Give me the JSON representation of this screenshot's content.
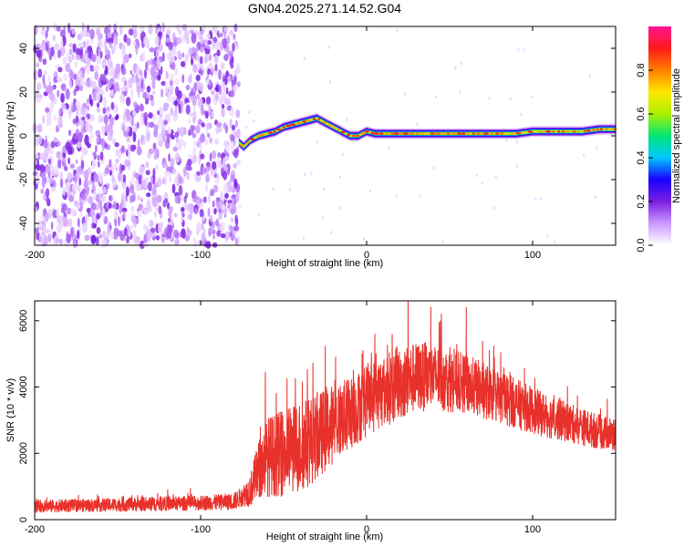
{
  "title": "GN04.2025.271.14.52.G04",
  "chart_data": [
    {
      "type": "heatmap",
      "name": "spectrogram",
      "xlabel": "Height of straight line (km)",
      "ylabel": "Frequency (Hz)",
      "xlim": [
        -200,
        150
      ],
      "ylim": [
        -50,
        50
      ],
      "xticks": [
        -200,
        -100,
        0,
        100
      ],
      "yticks": [
        -40,
        -20,
        0,
        20,
        40
      ],
      "noise_region_x": [
        -200,
        -77
      ],
      "ridge": {
        "x": [
          -77,
          -74,
          -70,
          -65,
          -60,
          -55,
          -50,
          -45,
          -40,
          -35,
          -30,
          -25,
          -20,
          -15,
          -10,
          -5,
          0,
          5,
          10,
          20,
          30,
          40,
          50,
          60,
          70,
          80,
          90,
          100,
          110,
          120,
          130,
          140,
          150
        ],
        "y": [
          -3,
          -5,
          -2,
          0,
          1,
          2,
          4,
          5,
          6,
          7,
          8,
          6,
          4,
          2,
          0,
          0,
          2,
          1,
          1,
          1,
          1,
          1,
          1,
          1,
          1,
          1,
          1,
          2,
          2,
          2,
          2,
          3,
          3
        ]
      },
      "colorbar": {
        "label": "Normalized spectral amplitude",
        "range": [
          0,
          1
        ],
        "ticks": [
          0.0,
          0.2,
          0.4,
          0.6,
          0.8
        ],
        "tick_labels": [
          "0.0",
          "0.2",
          "0.4",
          "0.6",
          "0.8"
        ],
        "colors": [
          "#ffffff",
          "#cc99ff",
          "#7a1fe0",
          "#1a00ff",
          "#00c8ff",
          "#00e676",
          "#aaf000",
          "#ffe600",
          "#ff8000",
          "#ff1a1a",
          "#ff1493"
        ]
      }
    },
    {
      "type": "line",
      "name": "snr",
      "xlabel": "Height of straight line (km)",
      "ylabel": "SNR (10 * v/v)",
      "xlim": [
        -200,
        150
      ],
      "ylim": [
        0,
        6600
      ],
      "xticks": [
        -200,
        -100,
        0,
        100
      ],
      "yticks": [
        0,
        2000,
        4000,
        6000
      ],
      "color": "#e8312a",
      "envelope": {
        "x": [
          -200,
          -150,
          -100,
          -80,
          -75,
          -70,
          -65,
          -60,
          -50,
          -40,
          -30,
          -20,
          -10,
          0,
          10,
          20,
          30,
          40,
          50,
          60,
          70,
          80,
          90,
          100,
          110,
          120,
          130,
          140,
          150
        ],
        "mean": [
          400,
          450,
          500,
          550,
          700,
          900,
          1500,
          1900,
          2000,
          2200,
          2500,
          2900,
          3200,
          3600,
          3900,
          4100,
          4300,
          4300,
          4200,
          4100,
          3900,
          3700,
          3500,
          3300,
          3100,
          2950,
          2800,
          2650,
          2550
        ],
        "spread": [
          180,
          200,
          220,
          250,
          300,
          500,
          900,
          1200,
          1300,
          1400,
          1300,
          1200,
          1100,
          1100,
          1100,
          1100,
          1050,
          1000,
          950,
          900,
          850,
          800,
          750,
          700,
          650,
          600,
          560,
          520,
          500
        ]
      },
      "peaks": [
        {
          "x": -61,
          "y": 4450
        },
        {
          "x": 5,
          "y": 5600
        },
        {
          "x": 25,
          "y": 6600
        },
        {
          "x": 45,
          "y": 6200
        },
        {
          "x": 60,
          "y": 6400
        }
      ]
    }
  ]
}
